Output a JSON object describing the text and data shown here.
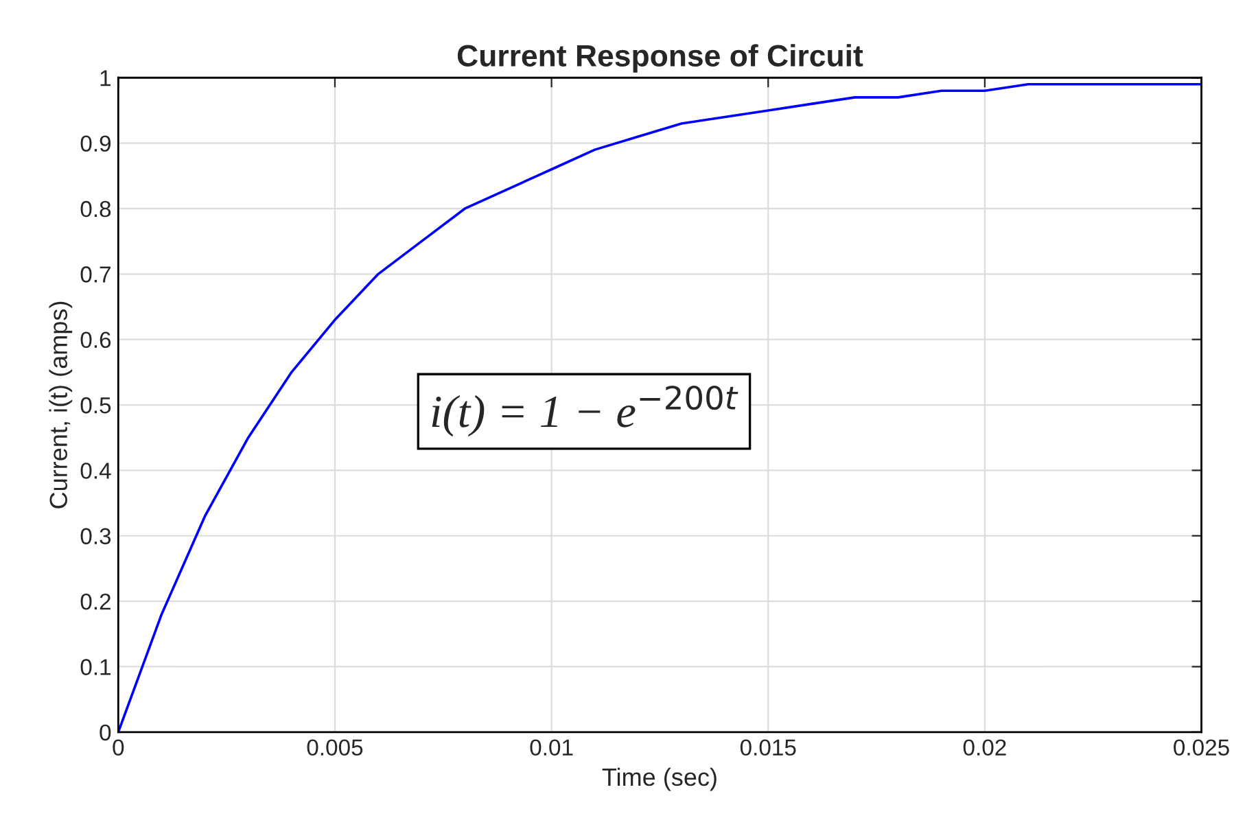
{
  "chart_data": {
    "type": "line",
    "title": "Current Response of Circuit",
    "xlabel": "Time (sec)",
    "ylabel": "Current, i(t) (amps)",
    "x": [
      0,
      0.001,
      0.002,
      0.003,
      0.004,
      0.005,
      0.006,
      0.007,
      0.008,
      0.009,
      0.01,
      0.011,
      0.012,
      0.013,
      0.014,
      0.015,
      0.016,
      0.017,
      0.018,
      0.019,
      0.02,
      0.021,
      0.022,
      0.023,
      0.024,
      0.025
    ],
    "series": [
      {
        "color": "#0000ff",
        "values": [
          0,
          0.18,
          0.33,
          0.45,
          0.55,
          0.63,
          0.7,
          0.75,
          0.8,
          0.83,
          0.86,
          0.89,
          0.91,
          0.93,
          0.94,
          0.95,
          0.96,
          0.97,
          0.97,
          0.98,
          0.98,
          0.99,
          0.99,
          0.99,
          0.99,
          0.99
        ]
      }
    ],
    "xlim": [
      0,
      0.025
    ],
    "xticks": [
      0,
      0.005,
      0.01,
      0.015,
      0.02,
      0.025
    ],
    "ylim": [
      0,
      1
    ],
    "yticks": [
      0,
      0.1,
      0.2,
      0.3,
      0.4,
      0.5,
      0.6,
      0.7,
      0.8,
      0.9,
      1
    ],
    "grid": true,
    "marker": "none",
    "line_style": "solid",
    "annotations": [
      "i(t) = 1 − e$^{−200t}$"
    ]
  }
}
